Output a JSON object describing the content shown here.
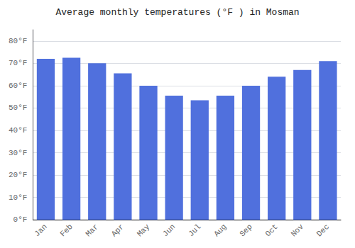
{
  "chart_data": {
    "type": "bar",
    "title": "Average monthly temperatures (°F ) in Mosman",
    "categories": [
      "Jan",
      "Feb",
      "Mar",
      "Apr",
      "May",
      "Jun",
      "Jul",
      "Aug",
      "Sep",
      "Oct",
      "Nov",
      "Dec"
    ],
    "values": [
      72,
      72.5,
      70,
      65.5,
      60,
      55.5,
      53.5,
      55.5,
      60,
      64,
      67,
      71
    ],
    "ylim": [
      0,
      85
    ],
    "yticks": [
      {
        "value": 0,
        "label": "0°F"
      },
      {
        "value": 10,
        "label": "10°F"
      },
      {
        "value": 20,
        "label": "20°F"
      },
      {
        "value": 30,
        "label": "30°F"
      },
      {
        "value": 40,
        "label": "40°F"
      },
      {
        "value": 50,
        "label": "50°F"
      },
      {
        "value": 60,
        "label": "60°F"
      },
      {
        "value": 70,
        "label": "70°F"
      },
      {
        "value": 80,
        "label": "80°F"
      }
    ],
    "grid": true
  }
}
